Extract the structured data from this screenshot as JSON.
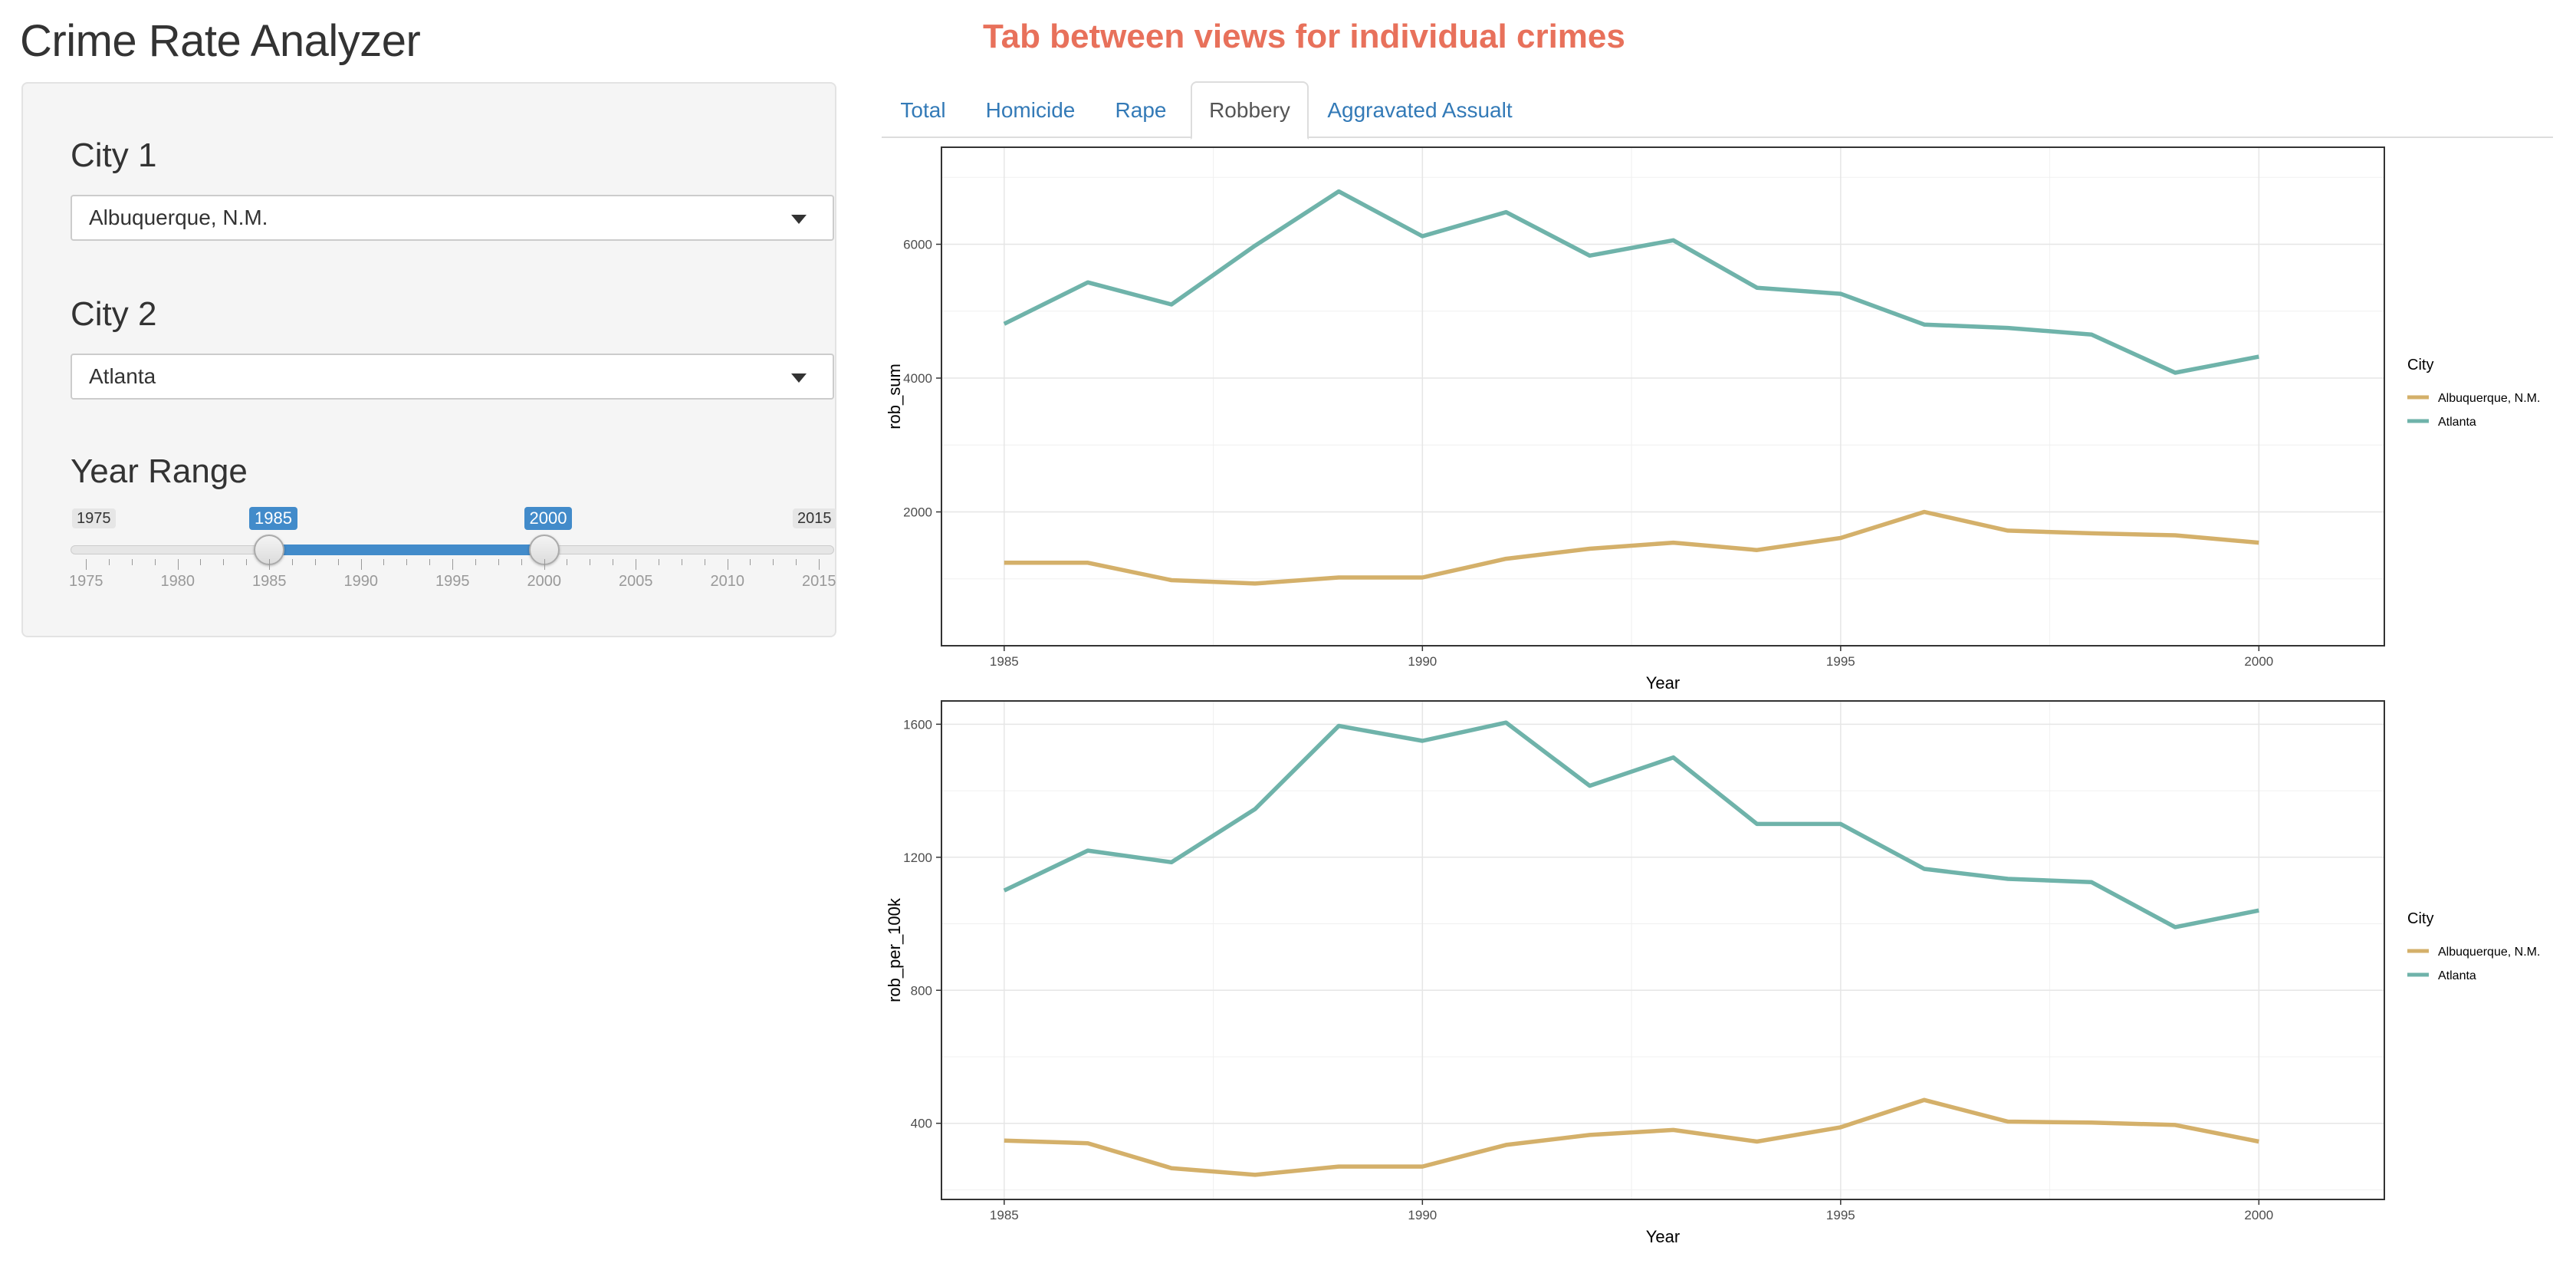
{
  "app": {
    "title": "Crime Rate Analyzer",
    "hint": "Tab between views for individual crimes"
  },
  "sidebar": {
    "city1": {
      "label": "City 1",
      "value": "Albuquerque, N.M."
    },
    "city2": {
      "label": "City 2",
      "value": "Atlanta"
    },
    "year_range": {
      "label": "Year Range",
      "min": 1975,
      "max": 2015,
      "from": 1985,
      "to": 2000,
      "ticks": [
        1975,
        1980,
        1985,
        1990,
        1995,
        2000,
        2005,
        2010,
        2015
      ],
      "min_label": "1975",
      "max_label": "2015",
      "from_label": "1985",
      "to_label": "2000",
      "tick_labels": [
        "1975",
        "1980",
        "1985",
        "1990",
        "1995",
        "2000",
        "2005",
        "2010",
        "2015"
      ],
      "accent_color": "#428bca"
    }
  },
  "tabs": [
    {
      "label": "Total",
      "active": false
    },
    {
      "label": "Homicide",
      "active": false
    },
    {
      "label": "Rape",
      "active": false
    },
    {
      "label": "Robbery",
      "active": true
    },
    {
      "label": "Aggravated Assualt",
      "active": false
    }
  ],
  "chart_data": [
    {
      "type": "line",
      "xlabel": "Year",
      "ylabel": "rob_sum",
      "xlim": [
        1984.25,
        2001.5
      ],
      "ylim": [
        0,
        7450
      ],
      "xticks": [
        1985,
        1990,
        1995,
        2000
      ],
      "xtick_labels": [
        "1985",
        "1990",
        "1995",
        "2000"
      ],
      "yticks": [
        2000,
        4000,
        6000
      ],
      "ytick_labels": [
        "2000",
        "4000",
        "6000"
      ],
      "grid": true,
      "legend": {
        "title": "City",
        "position": "right"
      },
      "x": [
        1985,
        1986,
        1987,
        1988,
        1989,
        1990,
        1991,
        1992,
        1993,
        1994,
        1995,
        1996,
        1997,
        1998,
        1999,
        2000
      ],
      "series": [
        {
          "name": "Albuquerque, N.M.",
          "color": "#d4b06a",
          "values": [
            1240,
            1240,
            980,
            930,
            1020,
            1020,
            1300,
            1450,
            1540,
            1430,
            1610,
            2000,
            1720,
            1680,
            1650,
            1540
          ]
        },
        {
          "name": "Atlanta",
          "color": "#6fb3aa",
          "values": [
            4810,
            5430,
            5100,
            5980,
            6790,
            6120,
            6480,
            5830,
            6060,
            5350,
            5260,
            4800,
            4750,
            4650,
            4080,
            4320
          ]
        }
      ]
    },
    {
      "type": "line",
      "xlabel": "Year",
      "ylabel": "rob_per_100k",
      "xlim": [
        1984.25,
        2001.5
      ],
      "ylim": [
        171,
        1670
      ],
      "xticks": [
        1985,
        1990,
        1995,
        2000
      ],
      "xtick_labels": [
        "1985",
        "1990",
        "1995",
        "2000"
      ],
      "yticks": [
        400,
        800,
        1200,
        1600
      ],
      "ytick_labels": [
        "400",
        "800",
        "1200",
        "1600"
      ],
      "grid": true,
      "legend": {
        "title": "City",
        "position": "right"
      },
      "x": [
        1985,
        1986,
        1987,
        1988,
        1989,
        1990,
        1991,
        1992,
        1993,
        1994,
        1995,
        1996,
        1997,
        1998,
        1999,
        2000
      ],
      "series": [
        {
          "name": "Albuquerque, N.M.",
          "color": "#d4b06a",
          "values": [
            348,
            340,
            265,
            245,
            270,
            270,
            335,
            365,
            380,
            345,
            388,
            470,
            405,
            402,
            395,
            345
          ]
        },
        {
          "name": "Atlanta",
          "color": "#6fb3aa",
          "values": [
            1100,
            1220,
            1185,
            1345,
            1595,
            1550,
            1605,
            1415,
            1500,
            1300,
            1300,
            1165,
            1135,
            1125,
            990,
            1040
          ]
        }
      ]
    }
  ]
}
